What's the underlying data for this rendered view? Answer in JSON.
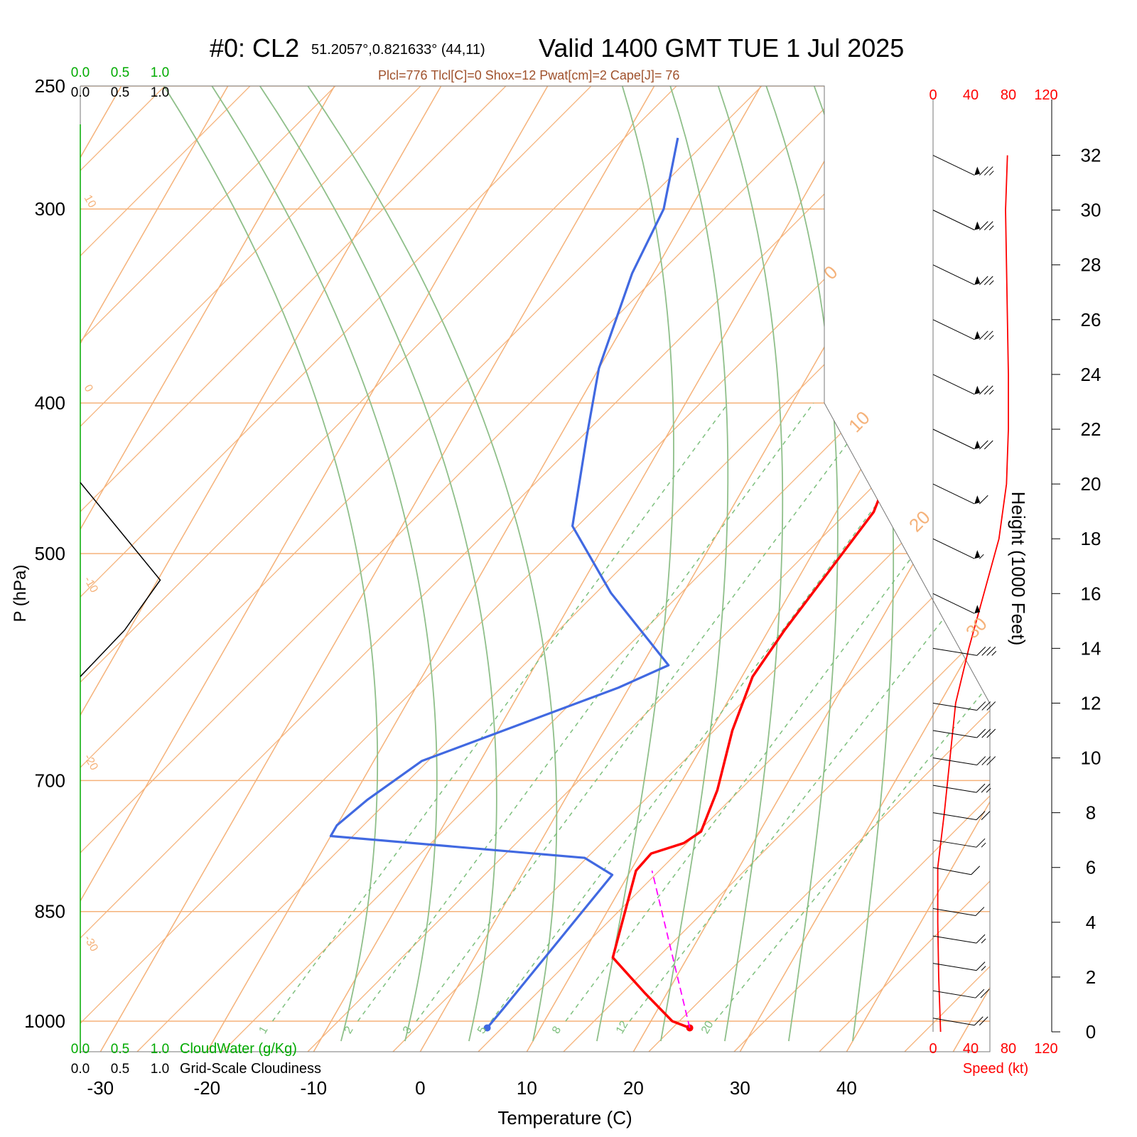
{
  "header": {
    "title_prefix": "#0: CL2",
    "location": "51.2057°,0.821633° (44,11)",
    "valid": "Valid 1400 GMT TUE 1 Jul 2025",
    "indices": "Plcl=776 Tlcl[C]=0 Shox=12 Pwat[cm]=2 Cape[J]= 76"
  },
  "colors": {
    "isotherm_isobar": "#f5b27a",
    "dry_adiabat": "#8fbf8a",
    "mixing_ratio": "#7dbf7d",
    "temperature": "#ff0000",
    "dewpoint": "#4169e1",
    "parcel": "#ff00ff",
    "cloud_water": "#00aa00",
    "cloudiness": "#000000",
    "indices_text": "#a0522d"
  },
  "chart_data": {
    "type": "line",
    "chart_kind": "skew-T log-P sounding",
    "xlabel": "Temperature (C)",
    "ylabel": "P (hPa)",
    "x_ticks": [
      "-30",
      "-20",
      "-10",
      "0",
      "10",
      "20",
      "30",
      "40"
    ],
    "x_tick_values": [
      -30,
      -20,
      -10,
      0,
      10,
      20,
      30,
      40
    ],
    "y_ticks": [
      "250",
      "300",
      "400",
      "500",
      "700",
      "850",
      "1000"
    ],
    "y_tick_values": [
      250,
      300,
      400,
      500,
      700,
      850,
      1000
    ],
    "pressure_range_hpa": [
      1030,
      250
    ],
    "isotherm_labels": [
      "10",
      "0",
      "-10",
      "-20",
      "-30"
    ],
    "isotherm_label_values": [
      10,
      0,
      -10,
      -20,
      -30
    ],
    "isotherm_labels_right": [
      "0",
      "10",
      "20",
      "30"
    ],
    "isotherm_labels_right_values": [
      0,
      10,
      20,
      30
    ],
    "mixing_ratio_labels": [
      "1",
      "2",
      "3",
      "5",
      "8",
      "12",
      "20"
    ],
    "mixing_ratio_values": [
      1,
      2,
      3,
      5,
      8,
      12,
      20
    ],
    "series": [
      {
        "key": "temperature",
        "points": [
          [
            24.0,
            1010
          ],
          [
            22,
            1000
          ],
          [
            18,
            960
          ],
          [
            13,
            910
          ],
          [
            10.5,
            800
          ],
          [
            11,
            780
          ],
          [
            13.5,
            768
          ],
          [
            14.5,
            755
          ],
          [
            13.8,
            710
          ],
          [
            12.0,
            650
          ],
          [
            11.0,
            600
          ],
          [
            11.5,
            560
          ],
          [
            12.8,
            500
          ],
          [
            13.5,
            470
          ],
          [
            12.5,
            430
          ],
          [
            11.0,
            400
          ],
          [
            6.0,
            350
          ],
          [
            1.0,
            300
          ],
          [
            -2.0,
            270
          ]
        ]
      },
      {
        "key": "dewpoint",
        "points": [
          [
            5.0,
            1010
          ],
          [
            5.5,
            980
          ],
          [
            8.5,
            805
          ],
          [
            5,
            785
          ],
          [
            -20,
            760
          ],
          [
            -20,
            748
          ],
          [
            -18.5,
            720
          ],
          [
            -15.5,
            680
          ],
          [
            -10.5,
            655
          ],
          [
            -1,
            610
          ],
          [
            2.5,
            590
          ],
          [
            -6.8,
            530
          ],
          [
            -14.0,
            480
          ],
          [
            -17.5,
            420
          ],
          [
            -20.0,
            380
          ],
          [
            -22.0,
            330
          ],
          [
            -22.5,
            300
          ],
          [
            -25.0,
            270
          ]
        ]
      },
      {
        "key": "parcel",
        "points": [
          [
            24.0,
            1010
          ],
          [
            12.0,
            800
          ]
        ]
      }
    ],
    "cloud_axis_ticks": [
      "0.0",
      "0.5",
      "1.0"
    ],
    "cloud_axis_values": [
      0.0,
      0.5,
      1.0
    ],
    "cloud_water_label": "CloudWater (g/Kg)",
    "cloudiness_label": "Grid-Scale Cloudiness",
    "cloudiness_profile": [
      [
        0.0,
        450
      ],
      [
        0.9,
        520
      ],
      [
        0.5,
        560
      ],
      [
        0.0,
        600
      ]
    ],
    "wind_speed_axis": {
      "label": "Speed (kt)",
      "ticks": [
        "0",
        "40",
        "80",
        "120"
      ],
      "tick_values": [
        0,
        40,
        80,
        120
      ]
    },
    "height_axis": {
      "label": "Height (1000 Feet)",
      "ticks": [
        "0",
        "2",
        "4",
        "6",
        "8",
        "10",
        "12",
        "14",
        "16",
        "18",
        "20",
        "22",
        "24",
        "26",
        "28",
        "30",
        "32"
      ],
      "tick_values": [
        0,
        2,
        4,
        6,
        8,
        10,
        12,
        14,
        16,
        18,
        20,
        22,
        24,
        26,
        28,
        30,
        32
      ]
    },
    "wind_speed_profile": [
      [
        8,
        0
      ],
      [
        6,
        2
      ],
      [
        5,
        4
      ],
      [
        5,
        6
      ],
      [
        12,
        8
      ],
      [
        18,
        10
      ],
      [
        24,
        12
      ],
      [
        38,
        14
      ],
      [
        54,
        16
      ],
      [
        70,
        18
      ],
      [
        78,
        20
      ],
      [
        80,
        22
      ],
      [
        80,
        24
      ],
      [
        79,
        26
      ],
      [
        78,
        28
      ],
      [
        77,
        30
      ],
      [
        79,
        32
      ]
    ],
    "wind_barbs": [
      {
        "height_kft": 0.5,
        "speed_kt": 20,
        "dir_deg": 250
      },
      {
        "height_kft": 1.5,
        "speed_kt": 20,
        "dir_deg": 255
      },
      {
        "height_kft": 2.5,
        "speed_kt": 18,
        "dir_deg": 260
      },
      {
        "height_kft": 3.5,
        "speed_kt": 15,
        "dir_deg": 260
      },
      {
        "height_kft": 4.5,
        "speed_kt": 10,
        "dir_deg": 255
      },
      {
        "height_kft": 6,
        "speed_kt": 10,
        "dir_deg": 300
      },
      {
        "height_kft": 7,
        "speed_kt": 15,
        "dir_deg": 280
      },
      {
        "height_kft": 8,
        "speed_kt": 20,
        "dir_deg": 280
      },
      {
        "height_kft": 9,
        "speed_kt": 25,
        "dir_deg": 280
      },
      {
        "height_kft": 10,
        "speed_kt": 30,
        "dir_deg": 275
      },
      {
        "height_kft": 11,
        "speed_kt": 30,
        "dir_deg": 275
      },
      {
        "height_kft": 12,
        "speed_kt": 30,
        "dir_deg": 275
      },
      {
        "height_kft": 14,
        "speed_kt": 35,
        "dir_deg": 275
      },
      {
        "height_kft": 16,
        "speed_kt": 50,
        "dir_deg": 290
      },
      {
        "height_kft": 18,
        "speed_kt": 55,
        "dir_deg": 290
      },
      {
        "height_kft": 20,
        "speed_kt": 60,
        "dir_deg": 290
      },
      {
        "height_kft": 22,
        "speed_kt": 70,
        "dir_deg": 290
      },
      {
        "height_kft": 24,
        "speed_kt": 75,
        "dir_deg": 290
      },
      {
        "height_kft": 26,
        "speed_kt": 75,
        "dir_deg": 290
      },
      {
        "height_kft": 28,
        "speed_kt": 75,
        "dir_deg": 290
      },
      {
        "height_kft": 30,
        "speed_kt": 75,
        "dir_deg": 290
      },
      {
        "height_kft": 32,
        "speed_kt": 75,
        "dir_deg": 290
      }
    ]
  }
}
